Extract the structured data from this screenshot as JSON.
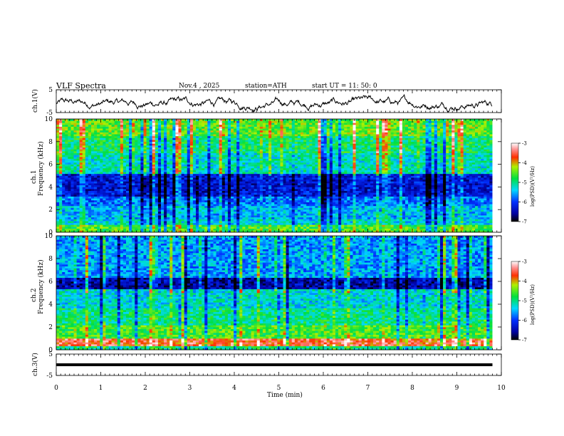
{
  "header": {
    "title": "VLF  Spectra",
    "date": "Nov.4  , 2025",
    "station": "station=ATH",
    "start": "start  UT  =   11: 50: 0"
  },
  "chart_data": {
    "type": "heatmap",
    "xlabel": "Time  (min)",
    "xlim": [
      0,
      10
    ],
    "xticks": [
      "0",
      "1",
      "2",
      "3",
      "4",
      "5",
      "6",
      "7",
      "8",
      "9",
      "10"
    ],
    "data_end_min": 9.8,
    "panels": [
      {
        "id": "ch1_waveform",
        "type": "line",
        "ylabel": "ch.1(V)",
        "ylim": [
          -5,
          5
        ],
        "yticks": [
          "5",
          "-5"
        ],
        "description_series": "ch.1 voltage, fluctuating roughly between -5 and 3 V"
      },
      {
        "id": "ch1_spectrogram",
        "type": "heatmap",
        "ylabel": "Frequency  (kHz)",
        "channel_label": "ch.1",
        "ylim": [
          0,
          10
        ],
        "yticks": [
          "0",
          "2",
          "4",
          "6",
          "8",
          "10"
        ],
        "colorbar": {
          "label": "log(PSD)(V²/Hz)",
          "range": [
            -7,
            -3
          ],
          "ticks": [
            "-3",
            "-4",
            "-5",
            "-6",
            "-7"
          ]
        },
        "bands": [
          {
            "f_low": 0,
            "f_high": 0.6,
            "level": -4.6
          },
          {
            "f_low": 0.6,
            "f_high": 1.2,
            "level": -5.3
          },
          {
            "f_low": 1.2,
            "f_high": 2.4,
            "level": -5.5
          },
          {
            "f_low": 2.4,
            "f_high": 3.2,
            "level": -5.8
          },
          {
            "f_low": 3.2,
            "f_high": 5.2,
            "level": -6.3
          },
          {
            "f_low": 5.2,
            "f_high": 7.0,
            "level": -5.2
          },
          {
            "f_low": 7.0,
            "f_high": 8.5,
            "level": -4.9
          },
          {
            "f_low": 8.5,
            "f_high": 10,
            "level": -4.5
          }
        ]
      },
      {
        "id": "ch2_spectrogram",
        "type": "heatmap",
        "ylabel": "Frequency  (kHz)",
        "channel_label": "ch.2",
        "ylim": [
          0,
          10
        ],
        "yticks": [
          "0",
          "2",
          "4",
          "6",
          "8",
          "10"
        ],
        "colorbar": {
          "label": "log(PSD)(V²/Hz)",
          "range": [
            -7,
            -3
          ],
          "ticks": [
            "-3",
            "-4",
            "-5",
            "-6",
            "-7"
          ]
        },
        "bands": [
          {
            "f_low": 0,
            "f_high": 0.4,
            "level": -5.0
          },
          {
            "f_low": 0.4,
            "f_high": 1.0,
            "level": -3.6
          },
          {
            "f_low": 1.0,
            "f_high": 2.2,
            "level": -4.6
          },
          {
            "f_low": 2.2,
            "f_high": 3.6,
            "level": -5.0
          },
          {
            "f_low": 3.6,
            "f_high": 5.4,
            "level": -5.3
          },
          {
            "f_low": 5.4,
            "f_high": 6.4,
            "level": -6.5
          },
          {
            "f_low": 6.4,
            "f_high": 10,
            "level": -5.6
          }
        ]
      },
      {
        "id": "ch3_waveform",
        "type": "line",
        "ylabel": "ch.3(V)",
        "ylim": [
          -5,
          5
        ],
        "yticks": [
          "5",
          "-5"
        ],
        "constant_value": 0
      }
    ]
  }
}
